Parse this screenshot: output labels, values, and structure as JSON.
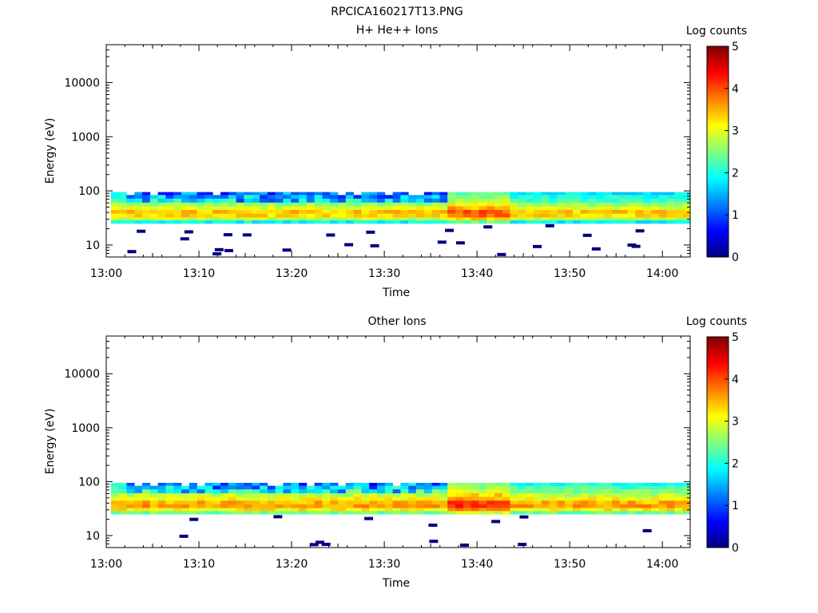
{
  "figure_title": "RPCICA160217T13.PNG",
  "chart_data": [
    {
      "type": "heatmap",
      "title": "H+ He++ Ions",
      "xlabel": "Time",
      "ylabel": "Energy (eV)",
      "x_tick_labels": [
        "13:00",
        "13:10",
        "13:20",
        "13:30",
        "13:40",
        "13:50",
        "14:00"
      ],
      "x_range_minutes": [
        0,
        63
      ],
      "y_scale": "log",
      "y_tick_labels": [
        "10",
        "100",
        "1000",
        "10000"
      ],
      "y_range": [
        6,
        50000
      ],
      "colorbar_label": "Log counts",
      "colorbar_ticks": [
        "0",
        "1",
        "2",
        "3",
        "4",
        "5"
      ],
      "colorbar_range": [
        0,
        5
      ],
      "energy_band_eV": [
        25,
        95
      ],
      "profile": [
        {
          "energy": 90,
          "level": 1.8
        },
        {
          "energy": 78,
          "level": 2.0
        },
        {
          "energy": 66,
          "level": 2.2
        },
        {
          "energy": 56,
          "level": 2.6
        },
        {
          "energy": 48,
          "level": 3.0
        },
        {
          "energy": 41,
          "level": 3.4
        },
        {
          "energy": 35,
          "level": 3.3
        },
        {
          "energy": 30,
          "level": 2.8
        },
        {
          "energy": 27,
          "level": 1.9
        }
      ],
      "notes": "Stronger low-count (blue) patches at high energies between 13:02 and 13:36; brighter band 13:36–13:42 near 35–45 eV; sparse single-count pixels below 25 eV."
    },
    {
      "type": "heatmap",
      "title": "Other Ions",
      "xlabel": "Time",
      "ylabel": "Energy (eV)",
      "x_tick_labels": [
        "13:00",
        "13:10",
        "13:20",
        "13:30",
        "13:40",
        "13:50",
        "14:00"
      ],
      "x_range_minutes": [
        0,
        63
      ],
      "y_scale": "log",
      "y_tick_labels": [
        "10",
        "100",
        "1000",
        "10000"
      ],
      "y_range": [
        6,
        50000
      ],
      "colorbar_label": "Log counts",
      "colorbar_ticks": [
        "0",
        "1",
        "2",
        "3",
        "4",
        "5"
      ],
      "colorbar_range": [
        0,
        5
      ],
      "energy_band_eV": [
        25,
        95
      ],
      "profile": [
        {
          "energy": 90,
          "level": 2.0
        },
        {
          "energy": 78,
          "level": 2.2
        },
        {
          "energy": 66,
          "level": 2.5
        },
        {
          "energy": 56,
          "level": 2.8
        },
        {
          "energy": 48,
          "level": 3.1
        },
        {
          "energy": 41,
          "level": 3.5
        },
        {
          "energy": 35,
          "level": 3.6
        },
        {
          "energy": 30,
          "level": 3.2
        },
        {
          "energy": 27,
          "level": 2.4
        }
      ],
      "notes": "Similar band to upper panel with slightly higher levels; brighter orange region 13:37–13:43; sparse low-count pixels below 25 eV."
    }
  ],
  "colors": {
    "colormap": [
      "#00007f",
      "#0000ff",
      "#007fff",
      "#00ffff",
      "#7fff7f",
      "#ffff00",
      "#ff7f00",
      "#ff0000",
      "#7f0000"
    ]
  }
}
